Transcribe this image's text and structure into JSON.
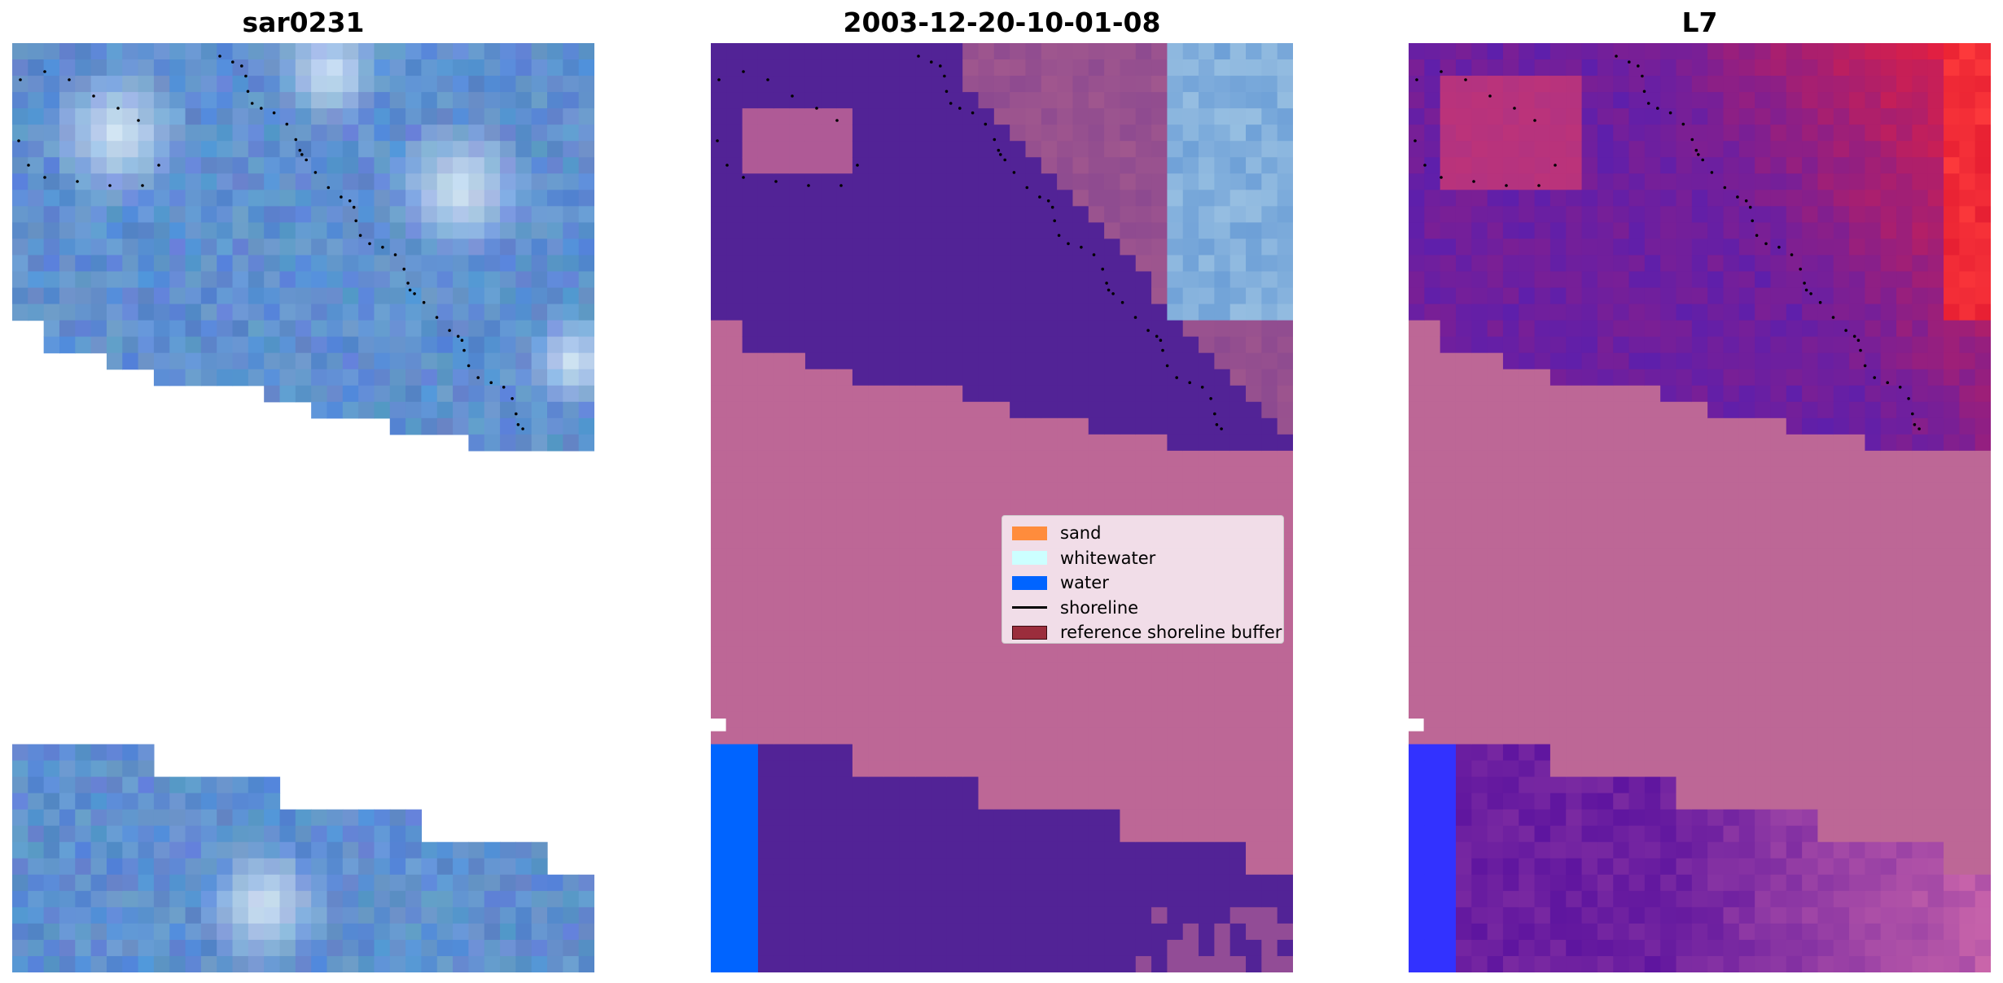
{
  "panels": [
    {
      "title": "sar0231"
    },
    {
      "title": "2003-12-20-10-01-08"
    },
    {
      "title": "L7"
    }
  ],
  "legend": [
    {
      "label": "sand",
      "color": "#ff8c3c"
    },
    {
      "label": "whitewater",
      "color": "#ccffff"
    },
    {
      "label": "water",
      "color": "#0064ff"
    },
    {
      "label": "shoreline",
      "color": "#000000"
    },
    {
      "label": "reference shoreline buffer",
      "color": "#9b2d3c"
    }
  ],
  "colors": {
    "sar_blue": "#5d8dd0",
    "land_class": "#522396",
    "buffer_pink": "#bd6796",
    "water": "#0064ff",
    "l7_red": "#dc1f46",
    "l7_purple": "#6c1fa0"
  }
}
